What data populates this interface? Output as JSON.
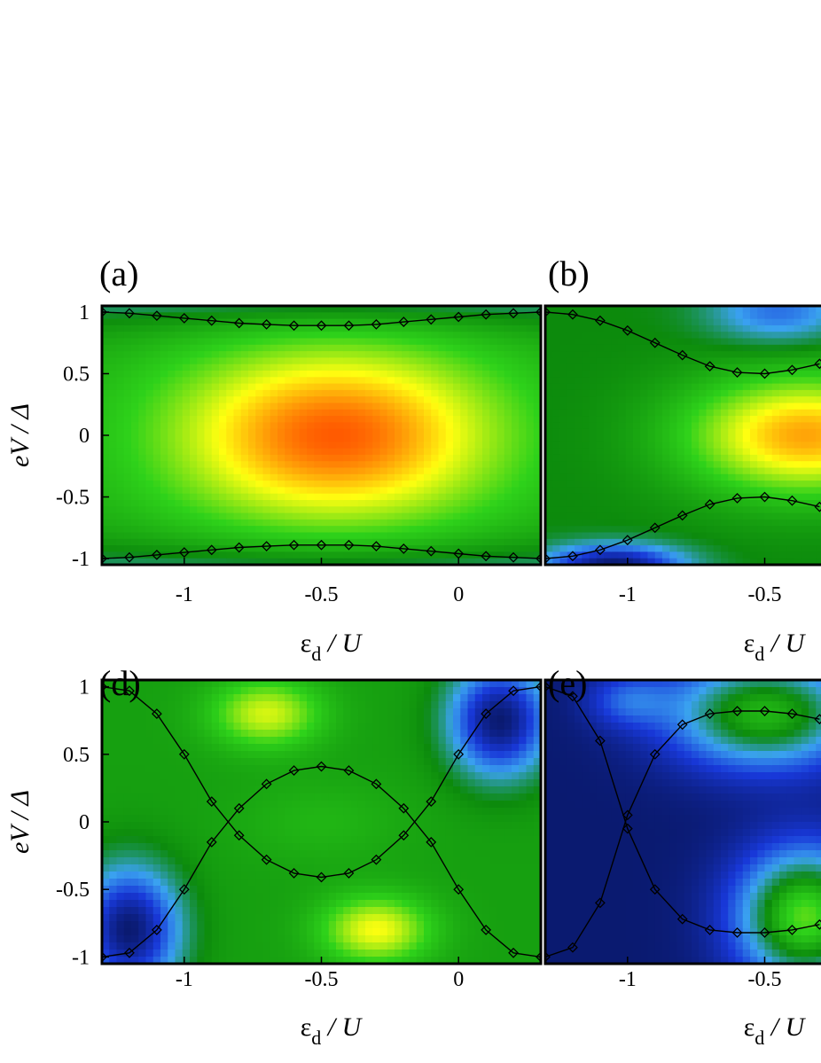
{
  "chart_data": [
    {
      "type": "heatmap",
      "panel_label": "(a)",
      "xlabel_main": "ε",
      "xlabel_sub": "d",
      "xlabel_tail": " / U",
      "ylabel": "eV / Δ",
      "xlim": [
        -1.3,
        0.3
      ],
      "ylim": [
        -1.05,
        1.05
      ],
      "xticks": [
        -1,
        -0.5,
        0
      ],
      "xtick_labels": [
        "-1",
        "-0.5",
        "0"
      ],
      "yticks": [
        1,
        0.5,
        0,
        -0.5,
        -1
      ],
      "ytick_labels": [
        "1",
        "0.5",
        "0",
        "-0.5",
        "-1"
      ],
      "colormap": [
        "#0a1a70",
        "#1838d8",
        "#3aa2f0",
        "#0c8a0c",
        "#2ed21a",
        "#ffff10",
        "#ff5000"
      ],
      "series": [
        {
          "x": [
            -1.3,
            -1.2,
            -1.1,
            -1.0,
            -0.9,
            -0.8,
            -0.7,
            -0.6,
            -0.5,
            -0.4,
            -0.3,
            -0.2,
            -0.1,
            0.0,
            0.1,
            0.2,
            0.3
          ],
          "y": [
            1.0,
            0.99,
            0.97,
            0.95,
            0.93,
            0.91,
            0.9,
            0.89,
            0.89,
            0.89,
            0.9,
            0.92,
            0.94,
            0.96,
            0.98,
            0.99,
            1.0
          ]
        },
        {
          "x": [
            -1.3,
            -1.2,
            -1.1,
            -1.0,
            -0.9,
            -0.8,
            -0.7,
            -0.6,
            -0.5,
            -0.4,
            -0.3,
            -0.2,
            -0.1,
            0.0,
            0.1,
            0.2,
            0.3
          ],
          "y": [
            -1.0,
            -0.99,
            -0.97,
            -0.95,
            -0.93,
            -0.91,
            -0.9,
            -0.89,
            -0.89,
            -0.89,
            -0.9,
            -0.92,
            -0.94,
            -0.96,
            -0.98,
            -0.99,
            -1.0
          ]
        }
      ]
    },
    {
      "type": "heatmap",
      "panel_label": "(b)",
      "xlabel_main": "ε",
      "xlabel_sub": "d",
      "xlabel_tail": " / U",
      "xlim": [
        -1.3,
        0.3
      ],
      "ylim": [
        -1.05,
        1.05
      ],
      "xticks": [
        -1,
        -0.5
      ],
      "xtick_labels": [
        "-1",
        "-0.5"
      ],
      "series": [
        {
          "x": [
            -1.3,
            -1.2,
            -1.1,
            -1.0,
            -0.9,
            -0.8,
            -0.7,
            -0.6,
            -0.5,
            -0.4,
            -0.3
          ],
          "y": [
            1.0,
            0.98,
            0.93,
            0.85,
            0.75,
            0.65,
            0.56,
            0.51,
            0.5,
            0.53,
            0.58
          ]
        },
        {
          "x": [
            -1.3,
            -1.2,
            -1.1,
            -1.0,
            -0.9,
            -0.8,
            -0.7,
            -0.6,
            -0.5,
            -0.4,
            -0.3
          ],
          "y": [
            -1.0,
            -0.98,
            -0.93,
            -0.85,
            -0.75,
            -0.65,
            -0.56,
            -0.51,
            -0.5,
            -0.53,
            -0.58
          ]
        }
      ]
    },
    {
      "type": "heatmap",
      "panel_label": "(d)",
      "xlabel_main": "ε",
      "xlabel_sub": "d",
      "xlabel_tail": " / U",
      "ylabel": "eV / Δ",
      "xlim": [
        -1.3,
        0.3
      ],
      "ylim": [
        -1.05,
        1.05
      ],
      "xticks": [
        -1,
        -0.5,
        0
      ],
      "xtick_labels": [
        "-1",
        "-0.5",
        "0"
      ],
      "yticks": [
        1,
        0.5,
        0,
        -0.5,
        -1
      ],
      "ytick_labels": [
        "1",
        "0.5",
        "0",
        "-0.5",
        "-1"
      ],
      "series": [
        {
          "x": [
            -1.3,
            -1.2,
            -1.1,
            -1.0,
            -0.9,
            -0.8,
            -0.7,
            -0.6,
            -0.5,
            -0.4,
            -0.3,
            -0.2,
            -0.1,
            0.0,
            0.1,
            0.2,
            0.3
          ],
          "y": [
            1.0,
            0.97,
            0.8,
            0.5,
            0.15,
            -0.1,
            -0.28,
            -0.38,
            -0.41,
            -0.38,
            -0.28,
            -0.1,
            0.15,
            0.5,
            0.8,
            0.97,
            1.0
          ]
        },
        {
          "x": [
            -1.3,
            -1.2,
            -1.1,
            -1.0,
            -0.9,
            -0.8,
            -0.7,
            -0.6,
            -0.5,
            -0.4,
            -0.3,
            -0.2,
            -0.1,
            0.0,
            0.1,
            0.2,
            0.3
          ],
          "y": [
            -1.0,
            -0.97,
            -0.8,
            -0.5,
            -0.15,
            0.1,
            0.28,
            0.38,
            0.41,
            0.38,
            0.28,
            0.1,
            -0.15,
            -0.5,
            -0.8,
            -0.97,
            -1.0
          ]
        }
      ]
    },
    {
      "type": "heatmap",
      "panel_label": "(e)",
      "xlabel_main": "ε",
      "xlabel_sub": "d",
      "xlabel_tail": " / U",
      "xlim": [
        -1.3,
        0.3
      ],
      "ylim": [
        -1.05,
        1.05
      ],
      "xticks": [
        -1,
        -0.5
      ],
      "xtick_labels": [
        "-1",
        "-0.5"
      ],
      "series": [
        {
          "x": [
            -1.3,
            -1.2,
            -1.1,
            -1.0,
            -0.9,
            -0.8,
            -0.7,
            -0.6,
            -0.5,
            -0.4,
            -0.3
          ],
          "y": [
            1.0,
            0.93,
            0.6,
            -0.05,
            -0.5,
            -0.72,
            -0.8,
            -0.82,
            -0.82,
            -0.8,
            -0.76
          ]
        },
        {
          "x": [
            -1.3,
            -1.2,
            -1.1,
            -1.0,
            -0.9,
            -0.8,
            -0.7,
            -0.6,
            -0.5,
            -0.4,
            -0.3
          ],
          "y": [
            -1.0,
            -0.93,
            -0.6,
            0.05,
            0.5,
            0.72,
            0.8,
            0.82,
            0.82,
            0.8,
            0.76
          ]
        }
      ]
    }
  ]
}
